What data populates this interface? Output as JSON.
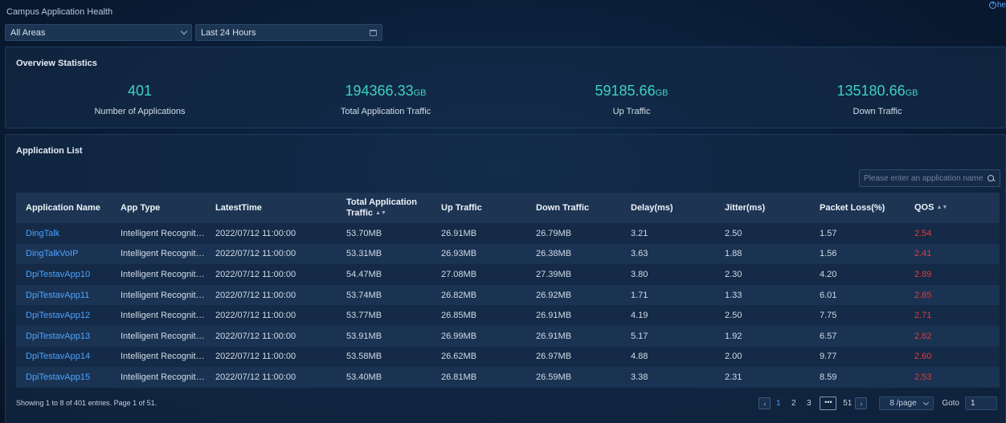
{
  "page": {
    "title": "Campus Application Health",
    "help": "he"
  },
  "filters": {
    "area": "All Areas",
    "time_range": "Last 24 Hours"
  },
  "overview": {
    "title": "Overview Statistics",
    "stats": [
      {
        "value": "401",
        "unit": "",
        "label": "Number of Applications"
      },
      {
        "value": "194366.33",
        "unit": "GB",
        "label": "Total Application Traffic"
      },
      {
        "value": "59185.66",
        "unit": "GB",
        "label": "Up Traffic"
      },
      {
        "value": "135180.66",
        "unit": "GB",
        "label": "Down Traffic"
      }
    ]
  },
  "app_list": {
    "title": "Application List",
    "search_placeholder": "Please enter an application name",
    "columns": [
      "Application Name",
      "App Type",
      "LatestTime",
      "Total Application Traffic",
      "Up Traffic",
      "Down Traffic",
      "Delay(ms)",
      "Jitter(ms)",
      "Packet Loss(%)",
      "QOS"
    ],
    "rows": [
      [
        "DingTalk",
        "Intelligent Recognition",
        "2022/07/12 11:00:00",
        "53.70MB",
        "26.91MB",
        "26.79MB",
        "3.21",
        "2.50",
        "1.57",
        "2.54"
      ],
      [
        "DingTalkVoIP",
        "Intelligent Recognition",
        "2022/07/12 11:00:00",
        "53.31MB",
        "26.93MB",
        "26.38MB",
        "3.63",
        "1.88",
        "1.56",
        "2.41"
      ],
      [
        "DpiTestavApp10",
        "Intelligent Recognition",
        "2022/07/12 11:00:00",
        "54.47MB",
        "27.08MB",
        "27.39MB",
        "3.80",
        "2.30",
        "4.20",
        "2.89"
      ],
      [
        "DpiTestavApp11",
        "Intelligent Recognition",
        "2022/07/12 11:00:00",
        "53.74MB",
        "26.82MB",
        "26.92MB",
        "1.71",
        "1.33",
        "6.01",
        "2.85"
      ],
      [
        "DpiTestavApp12",
        "Intelligent Recognition",
        "2022/07/12 11:00:00",
        "53.77MB",
        "26.85MB",
        "26.91MB",
        "4.19",
        "2.50",
        "7.75",
        "2.71"
      ],
      [
        "DpiTestavApp13",
        "Intelligent Recognition",
        "2022/07/12 11:00:00",
        "53.91MB",
        "26.99MB",
        "26.91MB",
        "5.17",
        "1.92",
        "6.57",
        "2.62"
      ],
      [
        "DpiTestavApp14",
        "Intelligent Recognition",
        "2022/07/12 11:00:00",
        "53.58MB",
        "26.62MB",
        "26.97MB",
        "4.88",
        "2.00",
        "9.77",
        "2.60"
      ],
      [
        "DpiTestavApp15",
        "Intelligent Recognition",
        "2022/07/12 11:00:00",
        "53.40MB",
        "26.81MB",
        "26.59MB",
        "3.38",
        "2.31",
        "8.59",
        "2.53"
      ]
    ],
    "footer": "Showing 1 to 8 of 401 entries.  Page 1 of 51.",
    "pagination": {
      "pages": [
        "1",
        "2",
        "3"
      ],
      "more": "•••",
      "last": "51",
      "per_page": "8 /page",
      "goto_label": "Goto",
      "goto_value": "1"
    }
  },
  "colors": {
    "accent_teal": "#3fd2c0",
    "link_blue": "#4da3ff",
    "qos_red": "#e23b3b"
  }
}
